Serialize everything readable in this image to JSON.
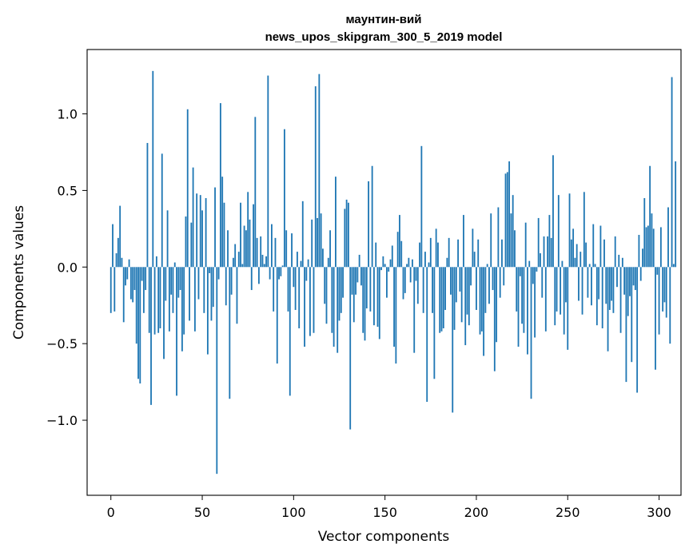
{
  "chart_data": {
    "type": "bar",
    "title_line1": "маунтин-вий",
    "title_line2": "news_upos_skipgram_300_5_2019 model",
    "xlabel": "Vector components",
    "ylabel": "Components values",
    "xlim": [
      -13,
      312
    ],
    "ylim": [
      -1.49,
      1.42
    ],
    "x_ticks": [
      0,
      50,
      100,
      150,
      200,
      250,
      300
    ],
    "x_tick_labels": [
      "0",
      "50",
      "100",
      "150",
      "200",
      "250",
      "300"
    ],
    "y_ticks": [
      -1.0,
      -0.5,
      0.0,
      0.5,
      1.0
    ],
    "y_tick_labels": [
      "−1.0",
      "−0.5",
      "0.0",
      "0.5",
      "1.0"
    ],
    "bar_color": "#1f77b4",
    "values": [
      -0.3,
      0.28,
      -0.29,
      0.09,
      0.19,
      0.4,
      0.06,
      -0.36,
      -0.12,
      -0.08,
      0.05,
      -0.21,
      -0.23,
      -0.15,
      -0.5,
      -0.73,
      -0.76,
      -0.09,
      -0.3,
      -0.15,
      0.81,
      -0.43,
      -0.9,
      1.28,
      -0.44,
      0.07,
      -0.43,
      -0.4,
      0.74,
      -0.6,
      -0.22,
      0.37,
      -0.42,
      -0.18,
      -0.3,
      0.03,
      -0.84,
      -0.2,
      -0.15,
      -0.55,
      -0.44,
      0.33,
      1.03,
      -0.35,
      0.29,
      0.65,
      -0.42,
      0.48,
      -0.21,
      0.47,
      0.37,
      -0.3,
      0.45,
      -0.57,
      -0.04,
      -0.35,
      -0.26,
      0.52,
      -1.35,
      -0.08,
      1.07,
      0.59,
      0.42,
      -0.25,
      0.24,
      -0.86,
      -0.18,
      0.06,
      0.15,
      -0.37,
      0.1,
      0.42,
      0.02,
      0.27,
      0.24,
      0.49,
      0.31,
      -0.15,
      0.41,
      0.98,
      0.19,
      -0.11,
      0.2,
      0.08,
      0.02,
      0.07,
      1.25,
      -0.08,
      0.28,
      -0.29,
      0.19,
      -0.63,
      -0.08,
      -0.06,
      0.01,
      0.9,
      0.24,
      -0.29,
      -0.84,
      0.22,
      -0.13,
      -0.28,
      0.1,
      -0.4,
      0.04,
      0.43,
      -0.52,
      -0.09,
      0.05,
      -0.45,
      0.31,
      -0.43,
      1.18,
      0.32,
      1.26,
      0.35,
      0.12,
      -0.24,
      -0.37,
      0.06,
      0.24,
      -0.43,
      -0.52,
      0.59,
      -0.56,
      -0.35,
      -0.3,
      -0.2,
      0.38,
      0.44,
      0.42,
      -1.06,
      -0.18,
      -0.36,
      -0.18,
      -0.1,
      0.08,
      -0.12,
      -0.43,
      -0.48,
      -0.27,
      0.56,
      -0.29,
      0.66,
      -0.38,
      0.16,
      -0.39,
      -0.47,
      -0.02,
      0.07,
      0.02,
      -0.2,
      -0.03,
      0.05,
      0.14,
      -0.52,
      -0.63,
      0.23,
      0.34,
      0.17,
      -0.21,
      -0.17,
      0.02,
      0.06,
      -0.1,
      0.05,
      -0.56,
      -0.09,
      -0.24,
      0.16,
      0.79,
      -0.3,
      0.1,
      -0.88,
      0.03,
      0.19,
      -0.3,
      -0.73,
      0.25,
      0.16,
      -0.43,
      -0.42,
      -0.4,
      -0.28,
      0.06,
      0.19,
      -0.18,
      -0.95,
      -0.41,
      -0.23,
      0.18,
      -0.16,
      -0.36,
      0.34,
      -0.51,
      -0.31,
      -0.38,
      -0.12,
      0.25,
      0.1,
      -0.28,
      0.18,
      -0.44,
      -0.42,
      -0.58,
      -0.3,
      0.02,
      -0.24,
      0.35,
      -0.15,
      -0.68,
      -0.49,
      0.39,
      -0.2,
      0.18,
      -0.12,
      0.61,
      0.62,
      0.69,
      0.35,
      0.47,
      0.24,
      -0.29,
      -0.52,
      -0.06,
      -0.37,
      -0.43,
      0.29,
      -0.57,
      0.04,
      -0.86,
      -0.11,
      -0.46,
      -0.03,
      0.32,
      0.09,
      -0.2,
      0.2,
      -0.42,
      0.2,
      0.34,
      0.19,
      0.73,
      -0.38,
      -0.29,
      0.47,
      -0.31,
      0.04,
      -0.44,
      -0.23,
      -0.54,
      0.48,
      0.18,
      0.25,
      0.06,
      0.15,
      -0.22,
      0.1,
      -0.31,
      0.49,
      0.16,
      -0.2,
      0.02,
      -0.25,
      0.28,
      0.02,
      -0.38,
      -0.21,
      0.27,
      -0.4,
      0.18,
      -0.24,
      -0.55,
      -0.28,
      -0.22,
      -0.3,
      0.2,
      -0.13,
      0.08,
      -0.43,
      0.06,
      -0.18,
      -0.75,
      -0.32,
      -0.19,
      -0.62,
      -0.12,
      -0.15,
      -0.82,
      0.21,
      -0.09,
      0.12,
      0.45,
      0.26,
      0.27,
      0.66,
      0.35,
      0.25,
      -0.67,
      -0.05,
      -0.44,
      0.26,
      -0.29,
      -0.23,
      -0.33,
      0.39,
      -0.5,
      1.24,
      0.02,
      0.69
    ]
  }
}
